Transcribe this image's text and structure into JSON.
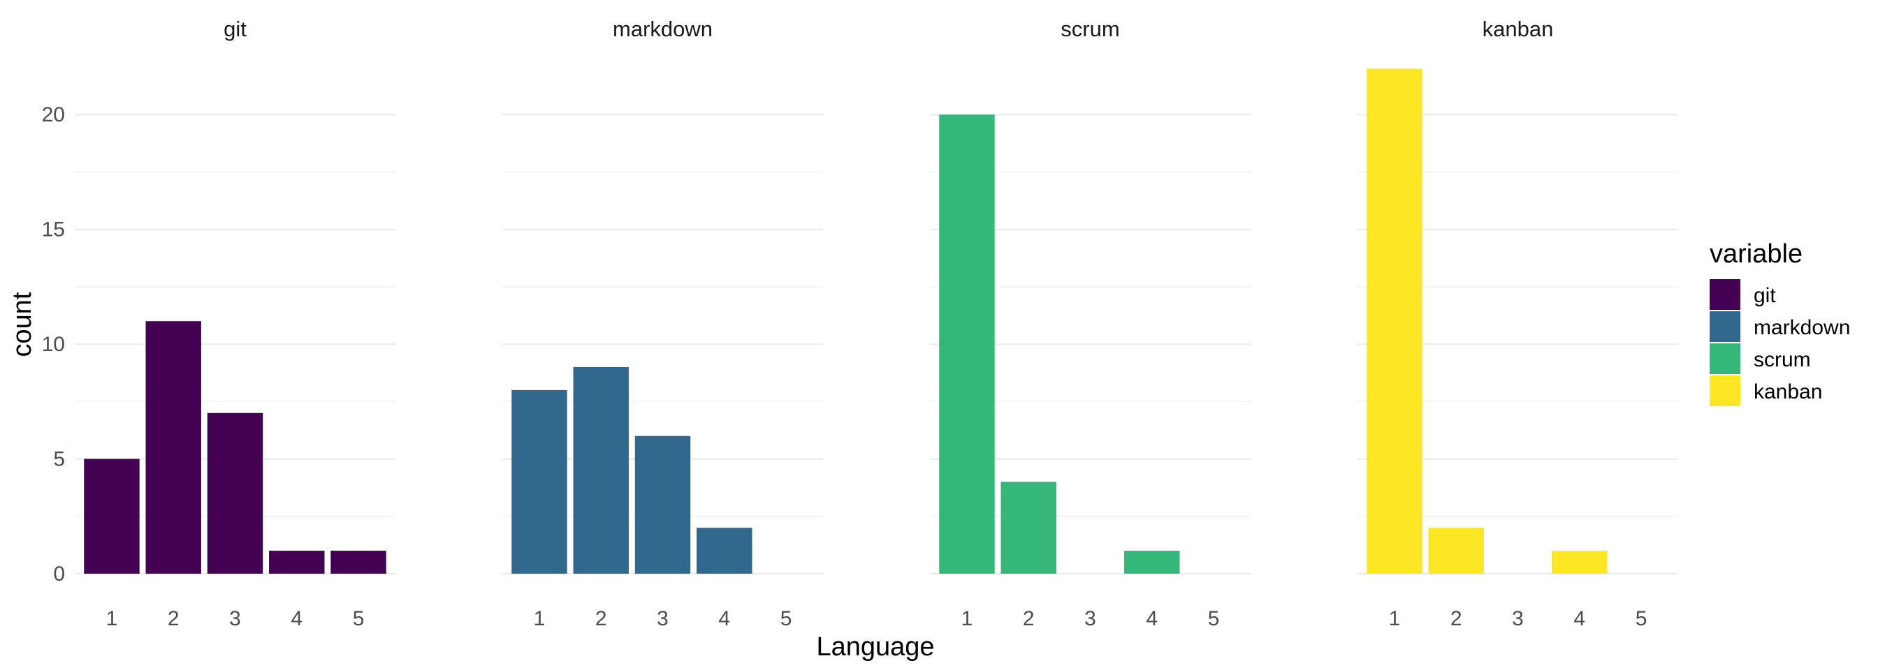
{
  "chart_data": {
    "type": "bar",
    "xlabel": "Language",
    "ylabel": "count",
    "x": [
      1,
      2,
      3,
      4,
      5
    ],
    "ylim": [
      0,
      22.5
    ],
    "yticks": [
      0,
      5,
      10,
      15,
      20
    ],
    "facets": [
      "git",
      "markdown",
      "scrum",
      "kanban"
    ],
    "series": [
      {
        "name": "git",
        "color": "#440154",
        "values": [
          5,
          11,
          7,
          1,
          1
        ]
      },
      {
        "name": "markdown",
        "color": "#31688E",
        "values": [
          8,
          9,
          6,
          2,
          0
        ]
      },
      {
        "name": "scrum",
        "color": "#35B779",
        "values": [
          20,
          4,
          0,
          1,
          0
        ]
      },
      {
        "name": "kanban",
        "color": "#FDE725",
        "values": [
          22,
          2,
          0,
          1,
          0
        ]
      }
    ],
    "legend": {
      "title": "variable",
      "position": "right",
      "items": [
        "git",
        "markdown",
        "scrum",
        "kanban"
      ]
    },
    "grid": true
  }
}
